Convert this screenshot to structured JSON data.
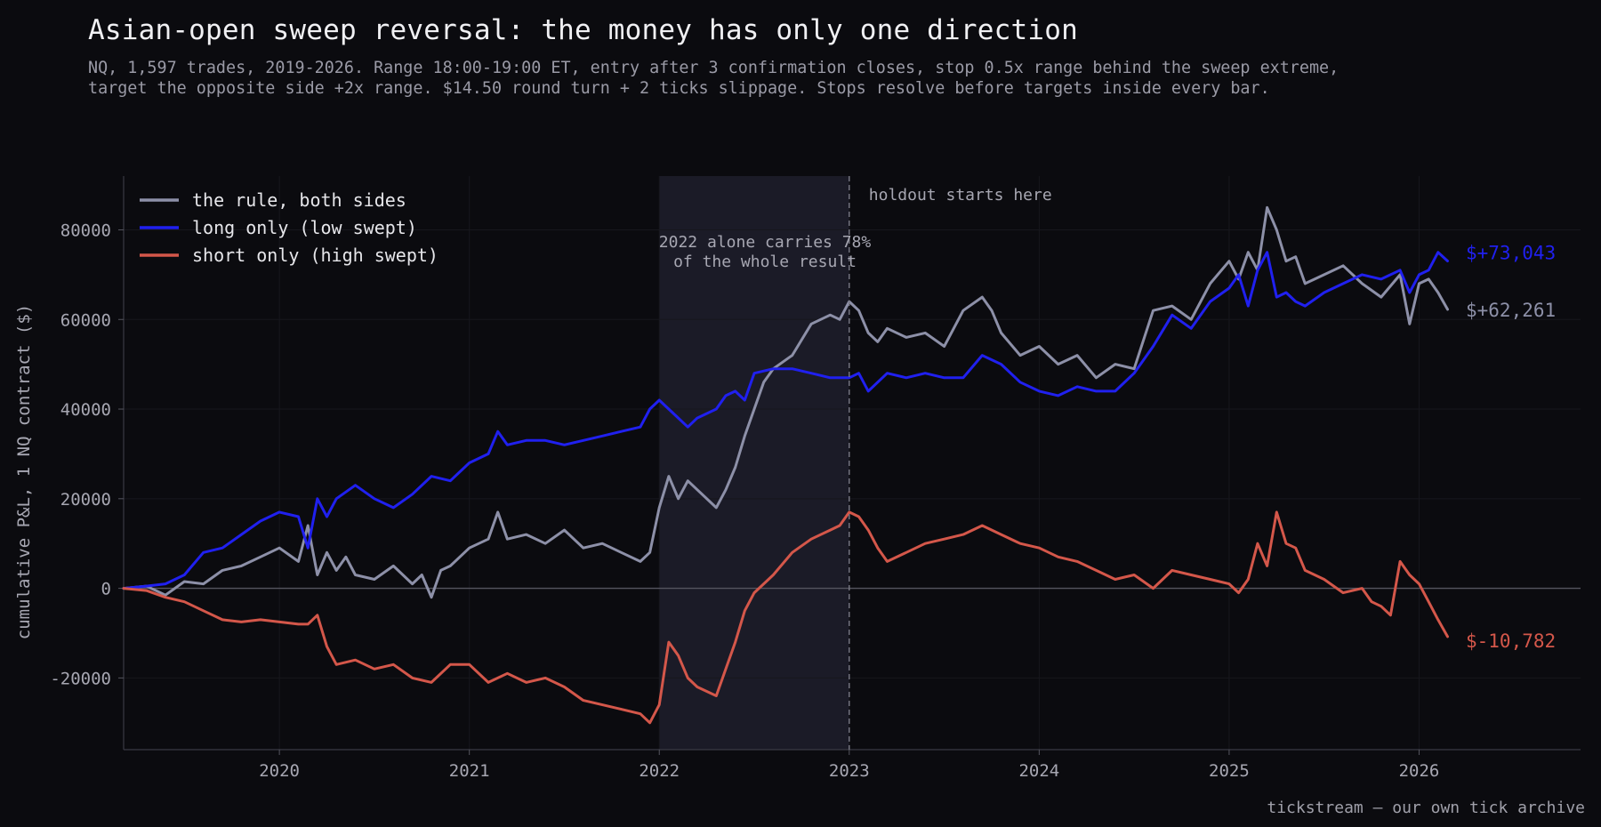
{
  "title": "Asian-open sweep reversal: the money has only one direction",
  "subtitle_lines": [
    "NQ, 1,597 trades, 2019-2026. Range 18:00-19:00 ET, entry after 3 confirmation closes, stop 0.5x range behind the sweep extreme,",
    "target the opposite side +2x range. $14.50 round turn + 2 ticks slippage. Stops resolve before targets inside every bar."
  ],
  "footer": "tickstream — our own tick archive",
  "chart_data": {
    "type": "line",
    "ylabel": "cumulative P&L, 1 NQ contract ($)",
    "xlabel": "",
    "xlim": [
      2019.18,
      2026.85
    ],
    "ylim": [
      -36000,
      92000
    ],
    "x_ticks": [
      2020,
      2021,
      2022,
      2023,
      2024,
      2025,
      2026
    ],
    "x_tick_labels": [
      "2020",
      "2021",
      "2022",
      "2023",
      "2024",
      "2025",
      "2026"
    ],
    "y_ticks": [
      -20000,
      0,
      20000,
      40000,
      60000,
      80000
    ],
    "y_tick_labels": [
      "-20000",
      "0",
      "20000",
      "40000",
      "60000",
      "80000"
    ],
    "grid": true,
    "legend_position": "top-left",
    "shaded_region": {
      "x0": 2022.0,
      "x1": 2023.0,
      "label": "2022 alone carries 78%\nof the whole result"
    },
    "vline": {
      "x": 2023.0,
      "label": "holdout starts here"
    },
    "series": [
      {
        "name": "the rule, both sides",
        "color": "#8d90a8",
        "end_label": "$+62,261",
        "x": [
          2019.18,
          2019.3,
          2019.4,
          2019.5,
          2019.6,
          2019.7,
          2019.8,
          2019.9,
          2020.0,
          2020.1,
          2020.15,
          2020.2,
          2020.25,
          2020.3,
          2020.35,
          2020.4,
          2020.5,
          2020.6,
          2020.7,
          2020.75,
          2020.8,
          2020.85,
          2020.9,
          2021.0,
          2021.1,
          2021.15,
          2021.2,
          2021.3,
          2021.4,
          2021.5,
          2021.6,
          2021.7,
          2021.8,
          2021.9,
          2021.95,
          2022.0,
          2022.05,
          2022.1,
          2022.15,
          2022.2,
          2022.3,
          2022.35,
          2022.4,
          2022.45,
          2022.5,
          2022.55,
          2022.6,
          2022.7,
          2022.8,
          2022.9,
          2022.95,
          2023.0,
          2023.05,
          2023.1,
          2023.15,
          2023.2,
          2023.3,
          2023.4,
          2023.5,
          2023.6,
          2023.7,
          2023.75,
          2023.8,
          2023.9,
          2024.0,
          2024.1,
          2024.2,
          2024.3,
          2024.4,
          2024.5,
          2024.6,
          2024.7,
          2024.8,
          2024.9,
          2025.0,
          2025.05,
          2025.1,
          2025.15,
          2025.2,
          2025.25,
          2025.3,
          2025.35,
          2025.4,
          2025.5,
          2025.6,
          2025.7,
          2025.8,
          2025.9,
          2025.95,
          2026.0,
          2026.05,
          2026.1,
          2026.15
        ],
        "y": [
          0,
          500,
          -1500,
          1500,
          1000,
          4000,
          5000,
          7000,
          9000,
          6000,
          14000,
          3000,
          8000,
          4000,
          7000,
          3000,
          2000,
          5000,
          1000,
          3000,
          -2000,
          4000,
          5000,
          9000,
          11000,
          17000,
          11000,
          12000,
          10000,
          13000,
          9000,
          10000,
          8000,
          6000,
          8000,
          18000,
          25000,
          20000,
          24000,
          22000,
          18000,
          22000,
          27000,
          34000,
          40000,
          46000,
          49000,
          52000,
          59000,
          61000,
          60000,
          64000,
          62000,
          57000,
          55000,
          58000,
          56000,
          57000,
          54000,
          62000,
          65000,
          62000,
          57000,
          52000,
          54000,
          50000,
          52000,
          47000,
          50000,
          49000,
          62000,
          63000,
          60000,
          68000,
          73000,
          69000,
          75000,
          71000,
          85000,
          80000,
          73000,
          74000,
          68000,
          70000,
          72000,
          68000,
          65000,
          70000,
          59000,
          68000,
          69000,
          66000,
          62261
        ]
      },
      {
        "name": "long only (low swept)",
        "color": "#2020ef",
        "end_label": "$+73,043",
        "x": [
          2019.18,
          2019.3,
          2019.4,
          2019.5,
          2019.6,
          2019.7,
          2019.8,
          2019.9,
          2020.0,
          2020.1,
          2020.15,
          2020.2,
          2020.25,
          2020.3,
          2020.4,
          2020.5,
          2020.6,
          2020.7,
          2020.8,
          2020.9,
          2021.0,
          2021.1,
          2021.15,
          2021.2,
          2021.3,
          2021.4,
          2021.5,
          2021.6,
          2021.7,
          2021.8,
          2021.9,
          2021.95,
          2022.0,
          2022.1,
          2022.15,
          2022.2,
          2022.3,
          2022.35,
          2022.4,
          2022.45,
          2022.5,
          2022.6,
          2022.7,
          2022.8,
          2022.9,
          2023.0,
          2023.05,
          2023.1,
          2023.2,
          2023.3,
          2023.4,
          2023.5,
          2023.6,
          2023.7,
          2023.8,
          2023.9,
          2024.0,
          2024.1,
          2024.2,
          2024.3,
          2024.4,
          2024.5,
          2024.6,
          2024.7,
          2024.8,
          2024.9,
          2025.0,
          2025.05,
          2025.1,
          2025.15,
          2025.2,
          2025.25,
          2025.3,
          2025.35,
          2025.4,
          2025.5,
          2025.6,
          2025.7,
          2025.8,
          2025.9,
          2025.95,
          2026.0,
          2026.05,
          2026.1,
          2026.15
        ],
        "y": [
          0,
          500,
          1000,
          3000,
          8000,
          9000,
          12000,
          15000,
          17000,
          16000,
          9000,
          20000,
          16000,
          20000,
          23000,
          20000,
          18000,
          21000,
          25000,
          24000,
          28000,
          30000,
          35000,
          32000,
          33000,
          33000,
          32000,
          33000,
          34000,
          35000,
          36000,
          40000,
          42000,
          38000,
          36000,
          38000,
          40000,
          43000,
          44000,
          42000,
          48000,
          49000,
          49000,
          48000,
          47000,
          47000,
          48000,
          44000,
          48000,
          47000,
          48000,
          47000,
          47000,
          52000,
          50000,
          46000,
          44000,
          43000,
          45000,
          44000,
          44000,
          48000,
          54000,
          61000,
          58000,
          64000,
          67000,
          70000,
          63000,
          71000,
          75000,
          65000,
          66000,
          64000,
          63000,
          66000,
          68000,
          70000,
          69000,
          71000,
          66000,
          70000,
          71000,
          75000,
          73043
        ]
      },
      {
        "name": "short only (high swept)",
        "color": "#d4574a",
        "end_label": "$-10,782",
        "x": [
          2019.18,
          2019.3,
          2019.4,
          2019.5,
          2019.6,
          2019.7,
          2019.8,
          2019.9,
          2020.0,
          2020.1,
          2020.15,
          2020.2,
          2020.25,
          2020.3,
          2020.4,
          2020.5,
          2020.6,
          2020.7,
          2020.8,
          2020.9,
          2021.0,
          2021.1,
          2021.2,
          2021.3,
          2021.4,
          2021.5,
          2021.6,
          2021.7,
          2021.8,
          2021.9,
          2021.95,
          2022.0,
          2022.05,
          2022.1,
          2022.15,
          2022.2,
          2022.3,
          2022.35,
          2022.4,
          2022.45,
          2022.5,
          2022.6,
          2022.7,
          2022.8,
          2022.9,
          2022.95,
          2023.0,
          2023.05,
          2023.1,
          2023.15,
          2023.2,
          2023.3,
          2023.4,
          2023.5,
          2023.6,
          2023.7,
          2023.8,
          2023.9,
          2024.0,
          2024.1,
          2024.2,
          2024.3,
          2024.4,
          2024.5,
          2024.6,
          2024.7,
          2024.8,
          2024.9,
          2025.0,
          2025.05,
          2025.1,
          2025.15,
          2025.2,
          2025.25,
          2025.3,
          2025.35,
          2025.4,
          2025.5,
          2025.6,
          2025.7,
          2025.75,
          2025.8,
          2025.85,
          2025.9,
          2025.95,
          2026.0,
          2026.05,
          2026.1,
          2026.15
        ],
        "y": [
          0,
          -500,
          -2000,
          -3000,
          -5000,
          -7000,
          -7500,
          -7000,
          -7500,
          -8000,
          -8000,
          -6000,
          -13000,
          -17000,
          -16000,
          -18000,
          -17000,
          -20000,
          -21000,
          -17000,
          -17000,
          -21000,
          -19000,
          -21000,
          -20000,
          -22000,
          -25000,
          -26000,
          -27000,
          -28000,
          -30000,
          -26000,
          -12000,
          -15000,
          -20000,
          -22000,
          -24000,
          -18000,
          -12000,
          -5000,
          -1000,
          3000,
          8000,
          11000,
          13000,
          14000,
          17000,
          16000,
          13000,
          9000,
          6000,
          8000,
          10000,
          11000,
          12000,
          14000,
          12000,
          10000,
          9000,
          7000,
          6000,
          4000,
          2000,
          3000,
          0,
          4000,
          3000,
          2000,
          1000,
          -1000,
          2000,
          10000,
          5000,
          17000,
          10000,
          9000,
          4000,
          2000,
          -1000,
          0,
          -3000,
          -4000,
          -6000,
          6000,
          3000,
          1000,
          -3000,
          -7000,
          -10782
        ]
      }
    ]
  }
}
